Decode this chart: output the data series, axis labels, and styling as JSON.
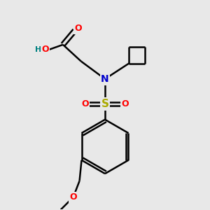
{
  "background_color": "#e8e8e8",
  "bond_color": "#000000",
  "atom_colors": {
    "O": "#ff0000",
    "N": "#0000cc",
    "S": "#aaaa00",
    "H": "#008080",
    "C": "#000000"
  },
  "figsize": [
    3.0,
    3.0
  ],
  "dpi": 100
}
